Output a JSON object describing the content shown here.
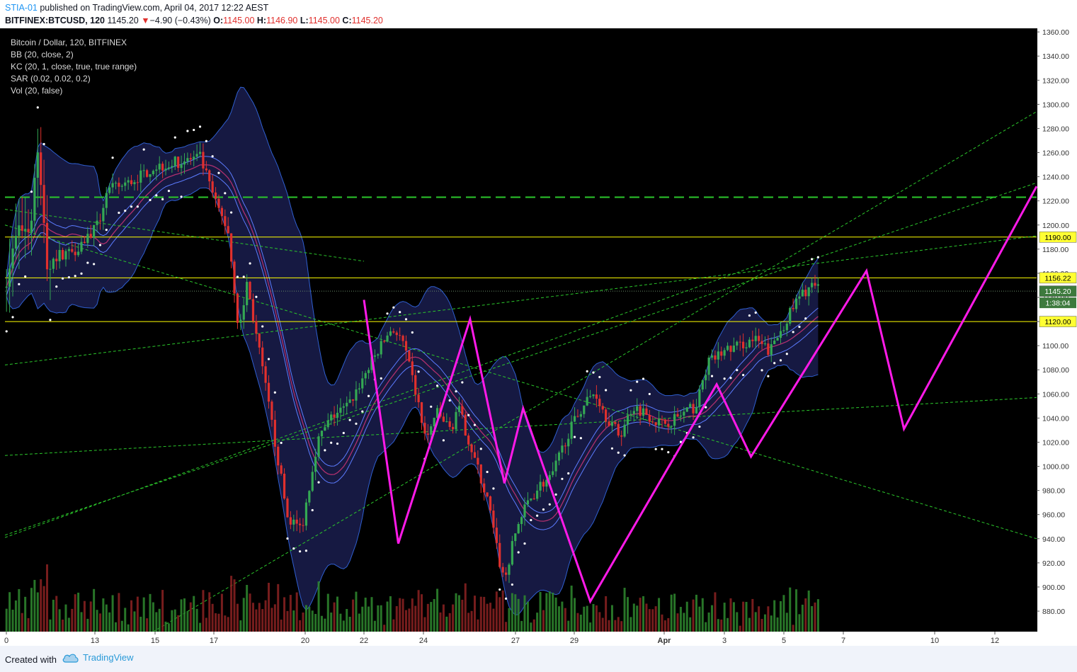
{
  "header": {
    "user": "STIA-01",
    "published": "published on TradingView.com, April 04, 2017 12:22 AEST",
    "symbol": "BITFINEX:BTCUSD, 120",
    "last": "1145.20",
    "change_arrow": "▼",
    "change": "−4.90 (−0.43%)",
    "o_label": "O:",
    "o_value": "1145.00",
    "h_label": "H:",
    "h_value": "1146.90",
    "l_label": "L:",
    "l_value": "1145.00",
    "c_label": "C:",
    "c_value": "1145.20"
  },
  "legend": [
    "Bitcoin / Dollar, 120, BITFINEX",
    "BB (20, close, 2)",
    "KC (20, 1, close, true, true range)",
    "SAR (0.02, 0.02, 0.2)",
    "Vol (20, false)"
  ],
  "footer": {
    "created": "Created with",
    "brand": "TradingView"
  },
  "colors": {
    "background": "#000000",
    "pattern": "#ff1ae8",
    "trendline": "#2bc72b",
    "level": "#ffff00",
    "band": "#3f51d8",
    "up": "#34a853",
    "down": "#e0302d",
    "sar": "#ffffff"
  },
  "chart_data": {
    "type": "candlestick",
    "symbol": "BITFINEX:BTCUSD",
    "interval": "120",
    "x_tick_labels": [
      "0",
      "13",
      "15",
      "17",
      "20",
      "22",
      "24",
      "27",
      "29",
      "Apr",
      "3",
      "5",
      "7",
      "10",
      "12"
    ],
    "y_tick_labels": [
      880,
      900,
      920,
      940,
      960,
      980,
      1000,
      1020,
      1040,
      1060,
      1080,
      1100,
      1120,
      1140,
      1160,
      1180,
      1200,
      1220,
      1240,
      1260,
      1280,
      1300,
      1320,
      1340,
      1360
    ],
    "ylim": [
      863,
      1363
    ],
    "last_price": 1145.2,
    "countdown": "1:38:04",
    "price_labels": [
      {
        "value": 1190.0,
        "text": "1190.00"
      },
      {
        "value": 1156.22,
        "text": "1156.22"
      },
      {
        "value": 1145.2,
        "text": "1145.20"
      },
      {
        "value": 1120.0,
        "text": "1120.00"
      }
    ],
    "horizontal_levels": [
      {
        "price": 1190,
        "color": "#ffff00",
        "style": "solid"
      },
      {
        "price": 1156.22,
        "color": "#ffff00",
        "style": "solid"
      },
      {
        "price": 1120,
        "color": "#ffff00",
        "style": "solid"
      },
      {
        "price": 1223,
        "color": "#2bc72b",
        "style": "dashed"
      }
    ],
    "harmonic_path": [
      {
        "time": 23.0,
        "price": 1138
      },
      {
        "time": 25.2,
        "price": 936
      },
      {
        "time": 29.8,
        "price": 1122
      },
      {
        "time": 32.0,
        "price": 986
      },
      {
        "time": 33.2,
        "price": 1048
      },
      {
        "time": 37.5,
        "price": 888
      },
      {
        "time": 45.6,
        "price": 1068
      },
      {
        "time": 47.8,
        "price": 1008
      },
      {
        "time": 55.2,
        "price": 1162
      },
      {
        "time": 57.6,
        "price": 1031
      },
      {
        "time": 66.1,
        "price": 1232
      }
    ],
    "trendlines": [
      [
        {
          "time": 0,
          "price": 1200
        },
        {
          "time": 66.1,
          "price": 940
        }
      ],
      [
        {
          "time": 0,
          "price": 943
        },
        {
          "time": 66.1,
          "price": 1235
        }
      ],
      [
        {
          "time": 9.5,
          "price": 863
        },
        {
          "time": 66.1,
          "price": 1294
        }
      ],
      [
        {
          "time": 0,
          "price": 1084
        },
        {
          "time": 66.1,
          "price": 1191
        }
      ],
      [
        {
          "time": 0,
          "price": 1009
        },
        {
          "time": 66.1,
          "price": 1057
        }
      ],
      [
        {
          "time": 0,
          "price": 1213
        },
        {
          "time": 23.0,
          "price": 1170
        }
      ],
      [
        {
          "time": 0,
          "price": 941
        },
        {
          "time": 48.5,
          "price": 1168
        }
      ]
    ],
    "ohlc_anchors": [
      {
        "time": 0.0,
        "price": 1148
      },
      {
        "time": 0.8,
        "price": 1195
      },
      {
        "time": 1.8,
        "price": 1200
      },
      {
        "time": 2.0,
        "price": 1278
      },
      {
        "time": 2.7,
        "price": 1165
      },
      {
        "time": 3.4,
        "price": 1175
      },
      {
        "time": 4.5,
        "price": 1180
      },
      {
        "time": 6.0,
        "price": 1200
      },
      {
        "time": 6.5,
        "price": 1228
      },
      {
        "time": 8.0,
        "price": 1235
      },
      {
        "time": 9.5,
        "price": 1248
      },
      {
        "time": 11.0,
        "price": 1252
      },
      {
        "time": 12.5,
        "price": 1256
      },
      {
        "time": 13.5,
        "price": 1218
      },
      {
        "time": 14.3,
        "price": 1195
      },
      {
        "time": 15.0,
        "price": 1110
      },
      {
        "time": 15.5,
        "price": 1152
      },
      {
        "time": 16.5,
        "price": 1080
      },
      {
        "time": 17.5,
        "price": 1005
      },
      {
        "time": 18.1,
        "price": 958
      },
      {
        "time": 19.0,
        "price": 948
      },
      {
        "time": 20.0,
        "price": 1020
      },
      {
        "time": 21.0,
        "price": 1042
      },
      {
        "time": 22.0,
        "price": 1050
      },
      {
        "time": 23.0,
        "price": 1075
      },
      {
        "time": 24.0,
        "price": 1098
      },
      {
        "time": 24.8,
        "price": 1115
      },
      {
        "time": 25.5,
        "price": 1102
      },
      {
        "time": 26.3,
        "price": 1062
      },
      {
        "time": 27.0,
        "price": 1020
      },
      {
        "time": 27.6,
        "price": 1045
      },
      {
        "time": 28.6,
        "price": 1030
      },
      {
        "time": 29.0,
        "price": 1050
      },
      {
        "time": 30.0,
        "price": 1010
      },
      {
        "time": 31.0,
        "price": 968
      },
      {
        "time": 31.6,
        "price": 925
      },
      {
        "time": 32.0,
        "price": 905
      },
      {
        "time": 32.8,
        "price": 950
      },
      {
        "time": 33.5,
        "price": 970
      },
      {
        "time": 34.3,
        "price": 985
      },
      {
        "time": 35.0,
        "price": 990
      },
      {
        "time": 36.0,
        "price": 1025
      },
      {
        "time": 37.0,
        "price": 1050
      },
      {
        "time": 37.8,
        "price": 1062
      },
      {
        "time": 38.5,
        "price": 1042
      },
      {
        "time": 39.4,
        "price": 1025
      },
      {
        "time": 40.2,
        "price": 1050
      },
      {
        "time": 41.0,
        "price": 1045
      },
      {
        "time": 42.0,
        "price": 1035
      },
      {
        "time": 43.0,
        "price": 1040
      },
      {
        "time": 44.3,
        "price": 1050
      },
      {
        "time": 45.0,
        "price": 1085
      },
      {
        "time": 46.0,
        "price": 1095
      },
      {
        "time": 47.0,
        "price": 1100
      },
      {
        "time": 48.0,
        "price": 1105
      },
      {
        "time": 49.0,
        "price": 1095
      },
      {
        "time": 50.0,
        "price": 1120
      },
      {
        "time": 50.8,
        "price": 1138
      },
      {
        "time": 51.6,
        "price": 1150
      },
      {
        "time": 52.3,
        "price": 1145
      }
    ],
    "volume_note": "volume histogram in bottom pane, green up / red down"
  }
}
